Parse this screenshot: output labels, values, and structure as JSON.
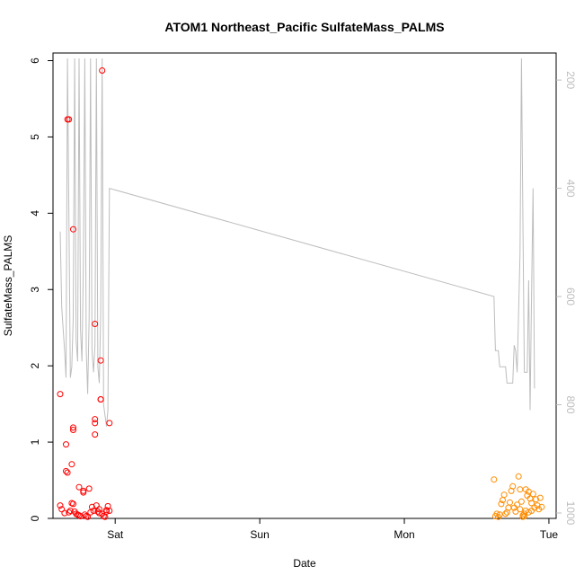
{
  "chart_data": {
    "type": "scatter",
    "title": "ATOM1 Northeast_Pacific SulfateMass_PALMS",
    "xlabel": "Date",
    "ylabel": "SulfateMass_PALMS",
    "x_ticks": [
      "Sat",
      "Sun",
      "Mon",
      "Tue"
    ],
    "x_tick_days": [
      1,
      2,
      3,
      4
    ],
    "xlim_days": [
      0.57,
      4.05
    ],
    "ylim": [
      0,
      6.1
    ],
    "y_ticks": [
      0,
      1,
      2,
      3,
      4,
      5,
      6
    ],
    "y2_ticks": [
      200,
      400,
      600,
      800,
      1000
    ],
    "y2_reversed": true,
    "y2_range": [
      150,
      1010
    ],
    "colors": {
      "series_a": "#ff0000",
      "series_b": "#ff8c00",
      "secondary_line": "#bdbdbd"
    },
    "series": [
      {
        "color_key": "series_a",
        "points": [
          [
            0.62,
            1.63
          ],
          [
            0.62,
            0.17
          ],
          [
            0.63,
            0.12
          ],
          [
            0.65,
            0.07
          ],
          [
            0.66,
            0.97
          ],
          [
            0.66,
            0.62
          ],
          [
            0.67,
            0.6
          ],
          [
            0.67,
            5.23
          ],
          [
            0.68,
            5.23
          ],
          [
            0.68,
            0.08
          ],
          [
            0.69,
            0.1
          ],
          [
            0.7,
            0.71
          ],
          [
            0.7,
            0.2
          ],
          [
            0.71,
            0.19
          ],
          [
            0.71,
            3.79
          ],
          [
            0.71,
            1.19
          ],
          [
            0.71,
            1.16
          ],
          [
            0.72,
            0.09
          ],
          [
            0.73,
            0.06
          ],
          [
            0.74,
            0.05
          ],
          [
            0.75,
            0.41
          ],
          [
            0.75,
            0.04
          ],
          [
            0.76,
            0.03
          ],
          [
            0.78,
            0.36
          ],
          [
            0.78,
            0.34
          ],
          [
            0.79,
            0.05
          ],
          [
            0.8,
            0.03
          ],
          [
            0.81,
            0.02
          ],
          [
            0.82,
            0.39
          ],
          [
            0.83,
            0.08
          ],
          [
            0.84,
            0.15
          ],
          [
            0.85,
            0.1
          ],
          [
            0.86,
            2.55
          ],
          [
            0.86,
            1.3
          ],
          [
            0.86,
            1.25
          ],
          [
            0.86,
            1.1
          ],
          [
            0.87,
            0.17
          ],
          [
            0.88,
            0.09
          ],
          [
            0.89,
            0.07
          ],
          [
            0.89,
            0.12
          ],
          [
            0.9,
            2.07
          ],
          [
            0.9,
            1.56
          ],
          [
            0.9,
            1.56
          ],
          [
            0.91,
            5.87
          ],
          [
            0.91,
            0.06
          ],
          [
            0.92,
            0.03
          ],
          [
            0.93,
            0.02
          ],
          [
            0.94,
            0.09
          ],
          [
            0.94,
            0.11
          ],
          [
            0.95,
            0.16
          ],
          [
            0.96,
            1.25
          ],
          [
            0.96,
            0.1
          ]
        ]
      },
      {
        "color_key": "series_b",
        "points": [
          [
            3.62,
            0.51
          ],
          [
            3.63,
            0.03
          ],
          [
            3.64,
            0.06
          ],
          [
            3.65,
            0.02
          ],
          [
            3.66,
            0.05
          ],
          [
            3.67,
            0.19
          ],
          [
            3.68,
            0.24
          ],
          [
            3.69,
            0.31
          ],
          [
            3.7,
            0.06
          ],
          [
            3.71,
            0.08
          ],
          [
            3.72,
            0.14
          ],
          [
            3.73,
            0.21
          ],
          [
            3.74,
            0.36
          ],
          [
            3.75,
            0.42
          ],
          [
            3.76,
            0.14
          ],
          [
            3.77,
            0.09
          ],
          [
            3.78,
            0.18
          ],
          [
            3.79,
            0.55
          ],
          [
            3.8,
            0.38
          ],
          [
            3.81,
            0.22
          ],
          [
            3.82,
            0.04
          ],
          [
            3.82,
            0.02
          ],
          [
            3.83,
            0.03
          ],
          [
            3.83,
            0.06
          ],
          [
            3.84,
            0.38
          ],
          [
            3.85,
            0.3
          ],
          [
            3.86,
            0.35
          ],
          [
            3.87,
            0.26
          ],
          [
            3.88,
            0.2
          ],
          [
            3.89,
            0.32
          ],
          [
            3.9,
            0.14
          ],
          [
            3.91,
            0.25
          ],
          [
            3.92,
            0.17
          ],
          [
            3.93,
            0.12
          ],
          [
            3.94,
            0.27
          ],
          [
            3.95,
            0.15
          ],
          [
            3.84,
            0.1
          ],
          [
            3.86,
            0.08
          ],
          [
            3.8,
            0.12
          ],
          [
            3.88,
            0.1
          ]
        ]
      }
    ],
    "secondary_line": {
      "color_key": "secondary_line",
      "points": [
        [
          0.62,
          480
        ],
        [
          0.63,
          620
        ],
        [
          0.65,
          700
        ],
        [
          0.66,
          750
        ],
        [
          0.67,
          160
        ],
        [
          0.69,
          750
        ],
        [
          0.7,
          730
        ],
        [
          0.71,
          640
        ],
        [
          0.72,
          160
        ],
        [
          0.73,
          680
        ],
        [
          0.74,
          720
        ],
        [
          0.75,
          160
        ],
        [
          0.76,
          660
        ],
        [
          0.77,
          720
        ],
        [
          0.78,
          540
        ],
        [
          0.79,
          160
        ],
        [
          0.8,
          700
        ],
        [
          0.81,
          780
        ],
        [
          0.82,
          640
        ],
        [
          0.83,
          160
        ],
        [
          0.84,
          700
        ],
        [
          0.85,
          740
        ],
        [
          0.86,
          690
        ],
        [
          0.87,
          160
        ],
        [
          0.88,
          730
        ],
        [
          0.89,
          760
        ],
        [
          0.9,
          630
        ],
        [
          0.91,
          160
        ],
        [
          0.92,
          800
        ],
        [
          0.93,
          820
        ],
        [
          0.94,
          840
        ],
        [
          0.95,
          810
        ],
        [
          0.96,
          400
        ],
        [
          3.62,
          600
        ],
        [
          3.63,
          700
        ],
        [
          3.65,
          700
        ],
        [
          3.66,
          730
        ],
        [
          3.7,
          730
        ],
        [
          3.71,
          760
        ],
        [
          3.75,
          760
        ],
        [
          3.76,
          690
        ],
        [
          3.77,
          700
        ],
        [
          3.78,
          740
        ],
        [
          3.8,
          520
        ],
        [
          3.81,
          160
        ],
        [
          3.82,
          460
        ],
        [
          3.83,
          740
        ],
        [
          3.84,
          740
        ],
        [
          3.85,
          740
        ],
        [
          3.86,
          570
        ],
        [
          3.87,
          810
        ],
        [
          3.88,
          600
        ],
        [
          3.89,
          400
        ],
        [
          3.9,
          770
        ]
      ]
    }
  }
}
